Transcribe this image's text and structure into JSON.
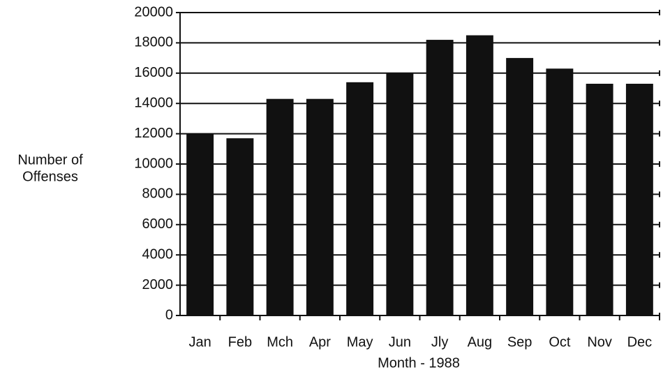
{
  "chart_data": {
    "type": "bar",
    "categories": [
      "Jan",
      "Feb",
      "Mch",
      "Apr",
      "May",
      "Jun",
      "Jly",
      "Aug",
      "Sep",
      "Oct",
      "Nov",
      "Dec"
    ],
    "values": [
      12000,
      11700,
      14300,
      14300,
      15400,
      16000,
      18200,
      18500,
      17000,
      16300,
      15300,
      15300
    ],
    "color": "#111111",
    "ylim": [
      0,
      20000
    ],
    "yticks": [
      0,
      2000,
      4000,
      6000,
      8000,
      10000,
      12000,
      14000,
      16000,
      18000,
      20000
    ],
    "ylabel": [
      "Number of",
      "Offenses"
    ],
    "xlabel": "Month - 1988",
    "grid": true
  }
}
